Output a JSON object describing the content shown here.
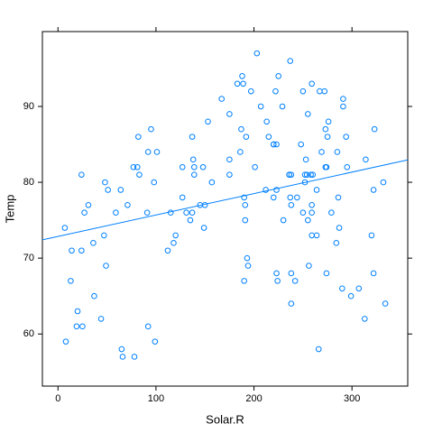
{
  "chart_data": {
    "type": "scatter",
    "x_label": "Solar.R",
    "y_label": "Temp",
    "xlim": [
      -15.9,
      356.9
    ],
    "ylim": [
      53.13,
      99.87
    ],
    "xticks": [
      0,
      100,
      200,
      300
    ],
    "yticks": [
      60,
      70,
      80,
      90
    ],
    "color": "#0080ff",
    "x": [
      190,
      118,
      149,
      313,
      299,
      99,
      19,
      194,
      256,
      290,
      274,
      65,
      334,
      307,
      78,
      322,
      44,
      8,
      320,
      25,
      92,
      66,
      266,
      13,
      252,
      223,
      279,
      286,
      287,
      242,
      186,
      220,
      264,
      127,
      273,
      291,
      323,
      259,
      250,
      148,
      332,
      322,
      191,
      284,
      37,
      120,
      137,
      150,
      59,
      91,
      250,
      135,
      127,
      47,
      98,
      31,
      138,
      269,
      248,
      236,
      101,
      175,
      314,
      276,
      267,
      272,
      175,
      139,
      264,
      175,
      291,
      48,
      260,
      274,
      285,
      187,
      220,
      7,
      258,
      295,
      294,
      223,
      81,
      82,
      213,
      275,
      253,
      254,
      83,
      24,
      77,
      255,
      229,
      207,
      222,
      137,
      192,
      273,
      157,
      64,
      71,
      51,
      115,
      244,
      190,
      259,
      36,
      255,
      212,
      238,
      215,
      153,
      203,
      225,
      237,
      188,
      167,
      197,
      183,
      189,
      95,
      92,
      252,
      220,
      230,
      259,
      236,
      259,
      238,
      24,
      112,
      237,
      224,
      27,
      238,
      201,
      238,
      14,
      139,
      49,
      20,
      193,
      145,
      191,
      131,
      223
    ],
    "values": [
      67,
      72,
      74,
      62,
      65,
      59,
      61,
      69,
      69,
      66,
      68,
      58,
      64,
      66,
      57,
      68,
      62,
      59,
      73,
      61,
      61,
      57,
      58,
      67,
      81,
      79,
      76,
      78,
      74,
      67,
      84,
      85,
      79,
      82,
      87,
      90,
      87,
      93,
      92,
      82,
      80,
      79,
      77,
      72,
      65,
      73,
      76,
      77,
      76,
      76,
      76,
      75,
      78,
      73,
      80,
      77,
      83,
      84,
      85,
      81,
      84,
      83,
      83,
      88,
      92,
      92,
      89,
      82,
      73,
      81,
      91,
      80,
      81,
      82,
      84,
      87,
      85,
      74,
      81,
      82,
      86,
      85,
      82,
      86,
      88,
      86,
      83,
      81,
      81,
      81,
      82,
      89,
      90,
      90,
      92,
      86,
      86,
      82,
      80,
      79,
      77,
      79,
      76,
      78,
      78,
      77,
      72,
      75,
      79,
      81,
      86,
      88,
      97,
      94,
      96,
      94,
      91,
      92,
      93,
      93,
      87,
      84,
      80,
      78,
      75,
      73,
      81,
      76,
      77,
      71,
      71,
      78,
      67,
      76,
      68,
      82,
      64,
      71,
      81,
      69,
      63,
      70,
      77,
      75,
      76,
      68
    ],
    "trend_line": {
      "x": [
        -15.9,
        356.9
      ],
      "values": [
        72.41,
        82.95
      ]
    }
  }
}
